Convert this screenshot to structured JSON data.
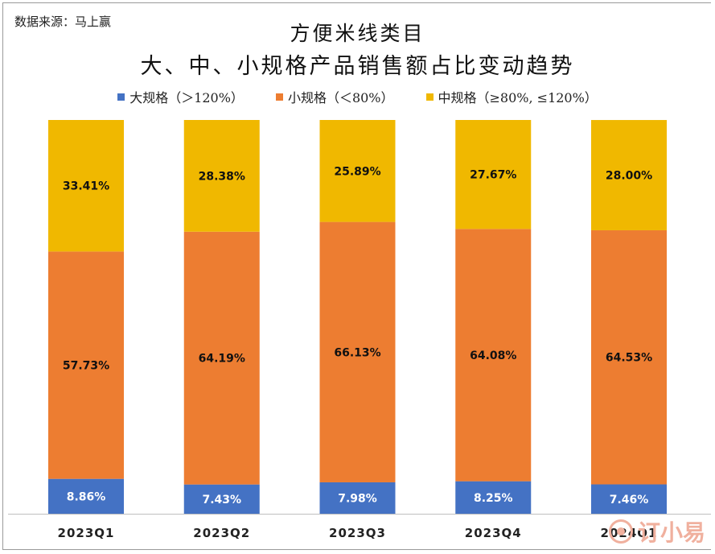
{
  "source_label": "数据来源：马上赢",
  "title_line1": "方便米线类目",
  "title_line2": "大、中、小规格产品销售额占比变动趋势",
  "watermark_text": "订小易",
  "chart_data": {
    "type": "bar",
    "stacked": true,
    "normalized": true,
    "categories": [
      "2023Q1",
      "2023Q2",
      "2023Q3",
      "2023Q4",
      "2024Q1"
    ],
    "series": [
      {
        "name": "大规格（＞120%）",
        "color": "#4472C4",
        "values": [
          8.86,
          7.43,
          7.98,
          8.25,
          7.46
        ],
        "labels": [
          "8.86%",
          "7.43%",
          "7.98%",
          "8.25%",
          "7.46%"
        ],
        "label_color": "#ffffff"
      },
      {
        "name": "小规格（＜80%）",
        "color": "#ED7D31",
        "values": [
          57.73,
          64.19,
          66.13,
          64.08,
          64.53
        ],
        "labels": [
          "57.73%",
          "64.19%",
          "66.13%",
          "64.08%",
          "64.53%"
        ],
        "label_color": "#111111"
      },
      {
        "name": "中规格（≥80%, ≤120%）",
        "color": "#F0B800",
        "values": [
          33.41,
          28.38,
          25.89,
          27.67,
          28.0
        ],
        "labels": [
          "33.41%",
          "28.38%",
          "25.89%",
          "27.67%",
          "28.00%"
        ],
        "label_color": "#111111"
      }
    ],
    "legend_order": [
      0,
      1,
      2
    ],
    "legend_position": "top",
    "ylim": [
      0,
      100
    ],
    "grid": false
  }
}
